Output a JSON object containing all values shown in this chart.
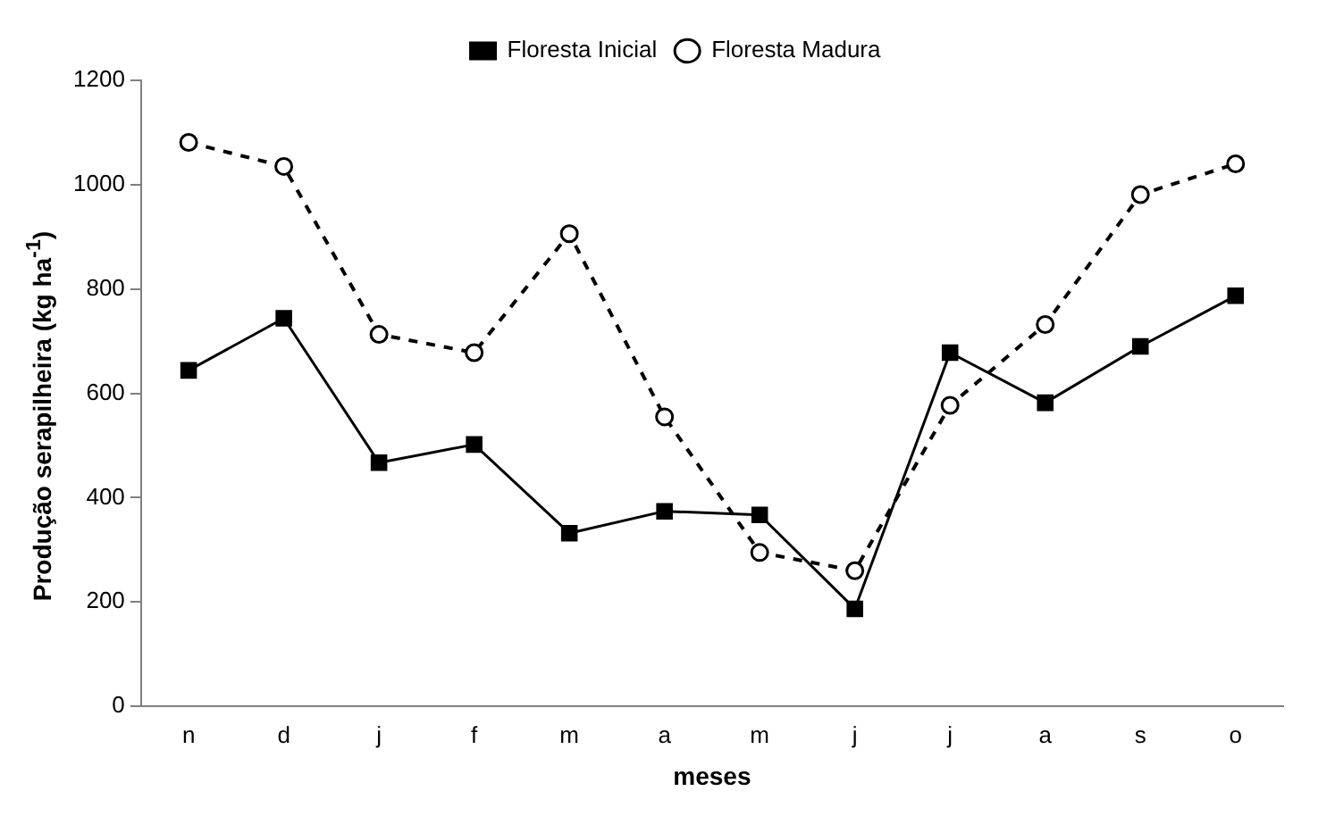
{
  "chart_data": {
    "type": "line",
    "xlabel": "meses",
    "ylabel": "Produção serapilheira (kg ha$^{-1}$)",
    "categories": [
      "n",
      "d",
      "j",
      "f",
      "m",
      "a",
      "m",
      "j",
      "j",
      "a",
      "s",
      "o"
    ],
    "series": [
      {
        "name": "Floresta Inicial",
        "color": "#000000",
        "marker": "square",
        "line_style": "solid",
        "values": [
          644,
          744,
          467,
          502,
          332,
          374,
          367,
          187,
          678,
          582,
          690,
          787
        ]
      },
      {
        "name": "Floresta Madura",
        "color": "#000000",
        "marker": "circle",
        "line_style": "dashed",
        "values": [
          1081,
          1035,
          713,
          678,
          906,
          555,
          295,
          260,
          577,
          732,
          981,
          1040
        ]
      }
    ],
    "ylim": [
      0,
      1200
    ],
    "yticks": [
      0,
      200,
      400,
      600,
      800,
      1000,
      1200
    ],
    "grid": false,
    "legend": "top"
  }
}
